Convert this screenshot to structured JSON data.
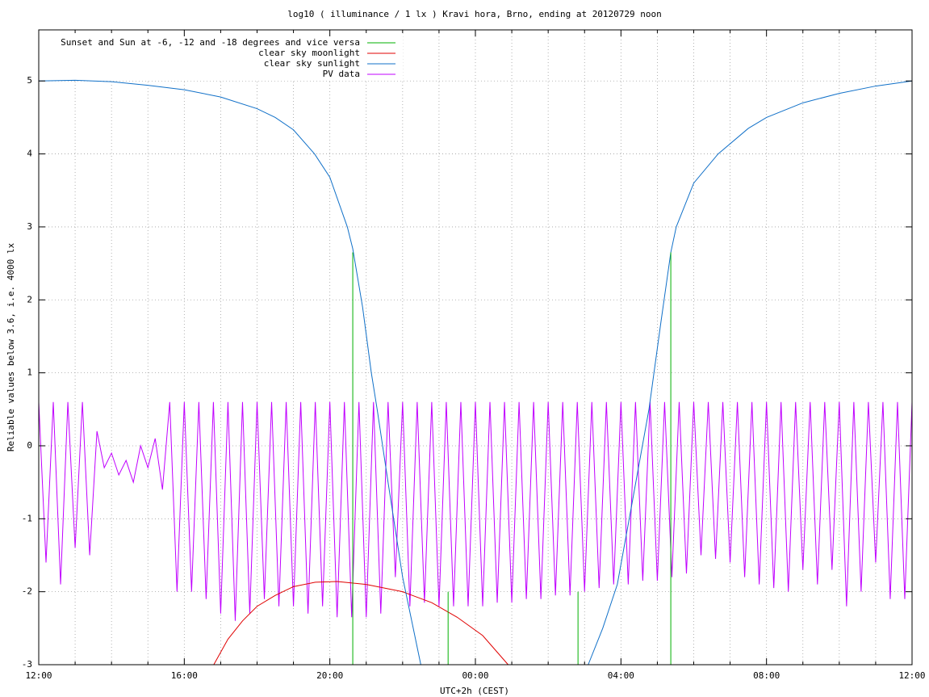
{
  "chart_data": {
    "type": "line",
    "title": "log10 ( illuminance / 1 lx ) Kravi hora, Brno, ending at 20120729 noon",
    "x_label": "UTC+2h (CEST)",
    "y_label": "Reliable values below 3.6, i.e. 4000 lx",
    "xlim": [
      0,
      24
    ],
    "ylim": [
      -3,
      5.7
    ],
    "xticks": [
      {
        "value": 0,
        "label": "12:00"
      },
      {
        "value": 4,
        "label": "16:00"
      },
      {
        "value": 8,
        "label": "20:00"
      },
      {
        "value": 12,
        "label": "00:00"
      },
      {
        "value": 16,
        "label": "04:00"
      },
      {
        "value": 20,
        "label": "08:00"
      },
      {
        "value": 24,
        "label": "12:00"
      }
    ],
    "xminorticks": [
      1,
      2,
      3,
      5,
      6,
      7,
      9,
      10,
      11,
      13,
      14,
      15,
      17,
      18,
      19,
      21,
      22,
      23
    ],
    "yticks": [
      -3,
      -2,
      -1,
      0,
      1,
      2,
      3,
      4,
      5
    ],
    "grid": true,
    "legend": "top-left",
    "series": [
      {
        "name": "Sunset and Sun at -6, -12 and -18 degrees and vice versa",
        "color": "#00b000",
        "style": "impulses",
        "x": [
          8.63,
          11.25,
          14.82,
          17.37
        ],
        "values": [
          2.65,
          -2.0,
          -2.0,
          2.65
        ]
      },
      {
        "name": "clear sky moonlight",
        "color": "#e00000",
        "style": "lines",
        "x": [
          4.81,
          5.2,
          5.6,
          6,
          6.5,
          7,
          7.6,
          8.2,
          9,
          10,
          10.8,
          11.5,
          12.2,
          12.9
        ],
        "values": [
          -3,
          -2.65,
          -2.4,
          -2.2,
          -2.05,
          -1.93,
          -1.87,
          -1.86,
          -1.9,
          -2.0,
          -2.15,
          -2.35,
          -2.6,
          -3
        ]
      },
      {
        "name": "clear sky sunlight",
        "color": "#1070c8",
        "style": "lines",
        "x": [
          0,
          1,
          2,
          3,
          4,
          5,
          6,
          6.5,
          7,
          7.58,
          8,
          8.48,
          8.63,
          8.9,
          9.14,
          9.3,
          9.6,
          10.0,
          10.5,
          12.8,
          15.1,
          15.5,
          15.9,
          16.3,
          16.77,
          17.1,
          17.37,
          17.52,
          18.0,
          18.67,
          19.5,
          20.0,
          21,
          22,
          23,
          24
        ],
        "values": [
          5.0,
          5.01,
          4.99,
          4.94,
          4.88,
          4.78,
          4.62,
          4.5,
          4.33,
          4.0,
          3.68,
          3.0,
          2.7,
          1.9,
          1.0,
          0.5,
          -0.5,
          -1.8,
          -3.0,
          null,
          -3.0,
          -2.5,
          -1.9,
          -0.8,
          0.5,
          1.7,
          2.65,
          3.0,
          3.6,
          4.0,
          4.35,
          4.5,
          4.7,
          4.83,
          4.93,
          5.0
        ]
      },
      {
        "name": "PV data",
        "color": "#c000ff",
        "style": "lines",
        "x": [
          0,
          0.2,
          0.4,
          0.6,
          0.8,
          1,
          1.2,
          1.4,
          1.6,
          1.8,
          2,
          2.2,
          2.4,
          2.6,
          2.8,
          3,
          3.2,
          3.4,
          3.6,
          3.8,
          4,
          4.2,
          4.4,
          4.6,
          4.8,
          5,
          5.2,
          5.4,
          5.6,
          5.8,
          6,
          6.2,
          6.4,
          6.6,
          6.8,
          7,
          7.2,
          7.4,
          7.6,
          7.8,
          8,
          8.2,
          8.4,
          8.6,
          8.8,
          9,
          9.2,
          9.4,
          9.6,
          9.8,
          10,
          10.2,
          10.4,
          10.6,
          10.8,
          11,
          11.2,
          11.4,
          11.6,
          11.8,
          12,
          12.2,
          12.4,
          12.6,
          12.8,
          13,
          13.2,
          13.4,
          13.6,
          13.8,
          14,
          14.2,
          14.4,
          14.6,
          14.8,
          15,
          15.2,
          15.4,
          15.6,
          15.8,
          16,
          16.2,
          16.4,
          16.6,
          16.8,
          17,
          17.2,
          17.4,
          17.6,
          17.8,
          18,
          18.2,
          18.4,
          18.6,
          18.8,
          19,
          19.2,
          19.4,
          19.6,
          19.8,
          20,
          20.2,
          20.4,
          20.6,
          20.8,
          21,
          21.2,
          21.4,
          21.6,
          21.8,
          22,
          22.2,
          22.4,
          22.6,
          22.8,
          23,
          23.2,
          23.4,
          23.6,
          23.8,
          24
        ],
        "values": [
          0.6,
          -1.6,
          0.6,
          -1.9,
          0.6,
          -1.4,
          0.6,
          -1.5,
          0.2,
          -0.3,
          -0.1,
          -0.4,
          -0.2,
          -0.5,
          0.0,
          -0.3,
          0.1,
          -0.6,
          0.6,
          -2.0,
          0.6,
          -2.0,
          0.6,
          -2.1,
          0.6,
          -2.3,
          0.6,
          -2.4,
          0.6,
          -2.3,
          0.6,
          -2.1,
          0.6,
          -2.2,
          0.6,
          -2.2,
          0.6,
          -2.3,
          0.6,
          -2.2,
          0.6,
          -2.35,
          0.6,
          -2.35,
          0.6,
          -2.35,
          0.6,
          -2.3,
          0.6,
          -1.8,
          0.6,
          -2.2,
          0.6,
          -2.15,
          0.6,
          -2.2,
          0.6,
          -2.2,
          0.6,
          -2.2,
          0.6,
          -2.2,
          0.6,
          -2.15,
          0.6,
          -2.15,
          0.6,
          -2.1,
          0.6,
          -2.1,
          0.6,
          -2.05,
          0.6,
          -2.05,
          0.6,
          -2.0,
          0.6,
          -1.95,
          0.6,
          -1.9,
          0.6,
          -1.9,
          0.6,
          -1.85,
          0.6,
          -1.85,
          0.6,
          -1.8,
          0.6,
          -1.75,
          0.6,
          -1.5,
          0.6,
          -1.55,
          0.6,
          -1.6,
          0.6,
          -1.8,
          0.6,
          -1.9,
          0.6,
          -1.95,
          0.6,
          -2.0,
          0.6,
          -1.7,
          0.6,
          -1.9,
          0.6,
          -1.7,
          0.6,
          -2.2,
          0.6,
          -2.0,
          0.6,
          -1.6,
          0.6,
          -2.1,
          0.6,
          -2.1,
          0.6
        ]
      }
    ]
  }
}
